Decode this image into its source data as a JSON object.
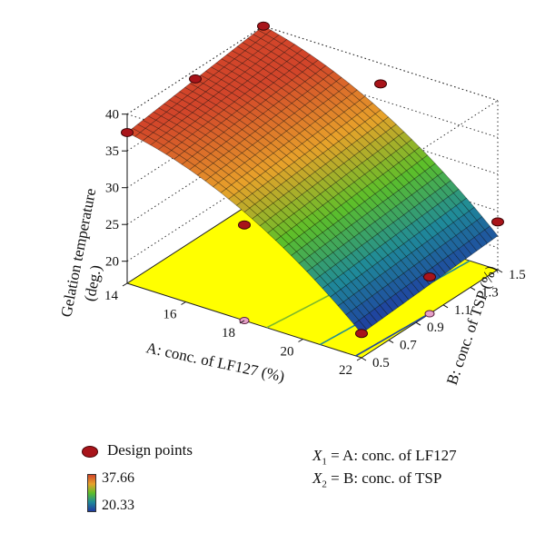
{
  "chart_data": {
    "type": "surface3d",
    "zlabel": "Gelation temperature (deg.)",
    "xlabel": "A: conc. of LF127 (%)",
    "ylabel": "B: conc. of TSP (%)",
    "x_ticks": [
      "14",
      "16",
      "18",
      "20",
      "22"
    ],
    "y_ticks": [
      "0.5",
      "0.7",
      "0.9",
      "1.1",
      "1.3",
      "1.5"
    ],
    "z_ticks": [
      "20",
      "25",
      "30",
      "35",
      "40"
    ],
    "xlim": [
      14,
      22
    ],
    "ylim": [
      0.5,
      1.5
    ],
    "zlim": [
      17,
      40
    ],
    "colorbar": {
      "max": "37.66",
      "min": "20.33"
    },
    "design_points": [
      {
        "A": 14,
        "B": 0.5,
        "temp": 37.5
      },
      {
        "A": 14,
        "B": 1.0,
        "temp": 38.8
      },
      {
        "A": 14,
        "B": 1.5,
        "temp": 40.0
      },
      {
        "A": 18,
        "B": 0.5,
        "temp": 30.0
      },
      {
        "A": 18,
        "B": 1.5,
        "temp": 37.2
      },
      {
        "A": 22,
        "B": 0.5,
        "temp": 20.3
      },
      {
        "A": 22,
        "B": 1.0,
        "temp": 22.0
      },
      {
        "A": 22,
        "B": 1.5,
        "temp": 23.5
      }
    ],
    "contour_levels": [
      30,
      25,
      21
    ],
    "legend_label": "Design points",
    "colors": {
      "surface_hot": "#d2452a",
      "surface_mid": "#5cbf2a",
      "surface_cold": "#1f3aa0",
      "floor": "#ffff00",
      "point": "#a8141a"
    }
  },
  "notes": {
    "x1_var": "X",
    "x1_sub": "1",
    "x1_def": " = A: conc. of LF127",
    "x2_var": "X",
    "x2_sub": "2",
    "x2_def": " = B: conc. of TSP"
  }
}
